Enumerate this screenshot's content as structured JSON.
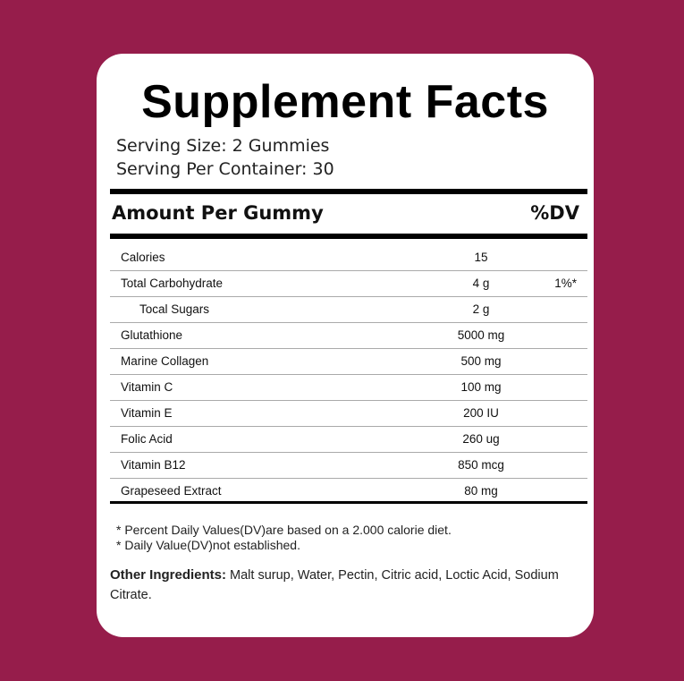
{
  "title": "Supplement Facts",
  "serving_size": "Serving Size: 2 Gummies",
  "servings_per_container": "Serving Per Container: 30",
  "header": {
    "amount": "Amount Per Gummy",
    "dv": "%DV"
  },
  "rows": [
    {
      "name": "Calories",
      "amount": "15",
      "dv": ""
    },
    {
      "name": "Total Carbohydrate",
      "amount": "4 g",
      "dv": "1%*"
    },
    {
      "name": "Tocal Sugars",
      "amount": "2 g",
      "dv": ""
    },
    {
      "name": "Glutathione",
      "amount": "5000 mg",
      "dv": ""
    },
    {
      "name": "Marine Collagen",
      "amount": "500 mg",
      "dv": ""
    },
    {
      "name": "Vitamin C",
      "amount": "100 mg",
      "dv": ""
    },
    {
      "name": "Vitamin E",
      "amount": "200 IU",
      "dv": ""
    },
    {
      "name": "Folic Acid",
      "amount": "260 ug",
      "dv": ""
    },
    {
      "name": "Vitamin B12",
      "amount": "850 mcg",
      "dv": ""
    },
    {
      "name": "Grapeseed Extract",
      "amount": "80 mg",
      "dv": ""
    }
  ],
  "notes": [
    "* Percent Daily Values(DV)are based on a 2.000 calorie diet.",
    "* Daily Value(DV)not established."
  ],
  "other_ingredients": {
    "label": "Other Ingredients:",
    "text": " Malt surup, Water, Pectin, Citric acid, Loctic Acid, Sodium Citrate."
  },
  "colors": {
    "background": "#961d4b",
    "card": "#ffffff"
  }
}
